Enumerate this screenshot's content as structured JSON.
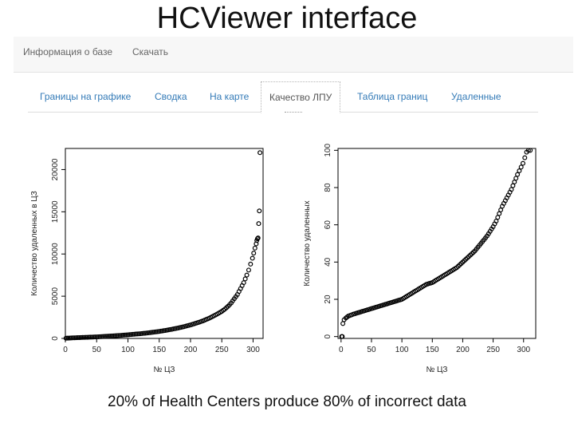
{
  "slide": {
    "title": "HCViewer interface",
    "caption": "20% of Health Centers produce 80% of incorrect data"
  },
  "top_nav": {
    "items": [
      "Информация о базе",
      "Скачать"
    ]
  },
  "tabs": {
    "items": [
      "Границы на графике",
      "Сводка",
      "На карте",
      "Качество ЛПУ",
      "Таблица границ",
      "Удаленные"
    ],
    "active": "Качество ЛПУ"
  },
  "colors": {
    "link": "#337ab7",
    "nav_bg": "#f7f7f7",
    "point": "#000000"
  },
  "chart_data": [
    {
      "type": "scatter",
      "title": "",
      "xlabel": "№ ЦЗ",
      "ylabel": "Количество удаленных в ЦЗ",
      "xlim": [
        0,
        316
      ],
      "ylim": [
        0,
        22500
      ],
      "xticks": [
        0,
        50,
        100,
        150,
        200,
        250,
        300
      ],
      "yticks": [
        0,
        5000,
        10000,
        15000,
        20000
      ],
      "x": [
        1,
        5,
        10,
        20,
        30,
        40,
        50,
        60,
        70,
        80,
        90,
        100,
        110,
        120,
        130,
        140,
        150,
        160,
        170,
        180,
        190,
        200,
        210,
        220,
        230,
        240,
        250,
        255,
        260,
        265,
        270,
        275,
        280,
        285,
        290,
        293,
        296,
        299,
        301,
        303,
        305,
        306,
        307,
        308,
        309,
        310,
        311
      ],
      "y": [
        20,
        40,
        60,
        90,
        120,
        150,
        180,
        220,
        270,
        320,
        370,
        430,
        500,
        560,
        640,
        730,
        830,
        950,
        1080,
        1230,
        1400,
        1600,
        1830,
        2080,
        2400,
        2780,
        3200,
        3480,
        3800,
        4200,
        4700,
        5200,
        5900,
        6600,
        7500,
        8100,
        8800,
        9500,
        10100,
        10700,
        11200,
        11600,
        11800,
        11900,
        13600,
        15100,
        22000
      ]
    },
    {
      "type": "scatter",
      "title": "",
      "xlabel": "№ ЦЗ",
      "ylabel": "Количество удаленных",
      "xlim": [
        -5,
        320
      ],
      "ylim": [
        -1,
        101
      ],
      "xticks": [
        0,
        50,
        100,
        150,
        200,
        250,
        300
      ],
      "yticks": [
        0,
        20,
        40,
        60,
        80,
        100
      ],
      "x": [
        1,
        2,
        3,
        5,
        8,
        12,
        20,
        30,
        40,
        50,
        60,
        70,
        80,
        90,
        100,
        110,
        120,
        130,
        140,
        150,
        160,
        170,
        180,
        190,
        200,
        210,
        220,
        230,
        240,
        250,
        255,
        260,
        265,
        270,
        275,
        280,
        285,
        290,
        293,
        296,
        299,
        302,
        305,
        308,
        311
      ],
      "y": [
        0,
        0,
        7,
        9,
        10,
        11,
        12,
        13,
        14,
        15,
        16,
        17,
        18,
        19,
        20,
        22,
        24,
        26,
        28,
        29,
        31,
        33,
        35,
        37,
        40,
        43,
        46,
        50,
        54,
        59,
        62,
        66,
        70,
        73,
        76,
        79,
        83,
        87,
        89,
        91,
        93,
        96,
        99,
        100,
        100
      ]
    }
  ]
}
